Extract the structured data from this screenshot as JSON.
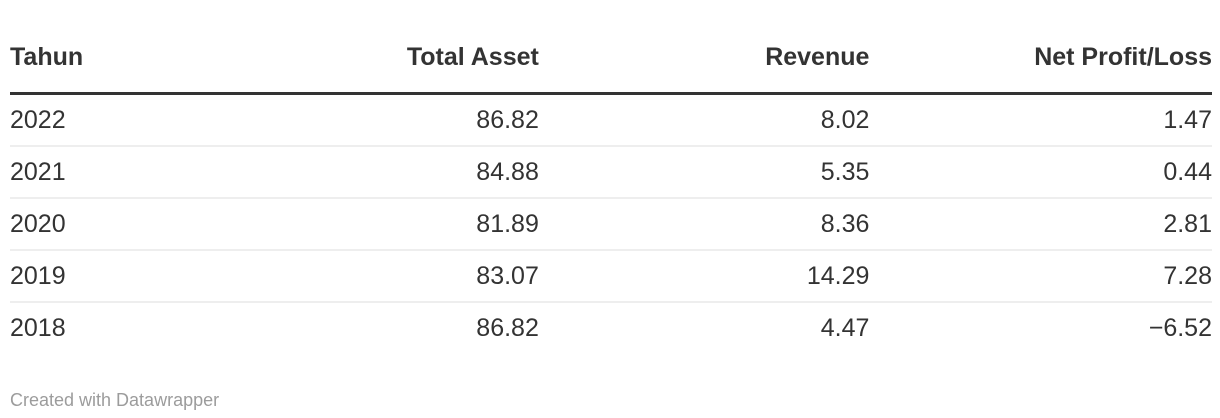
{
  "table": {
    "header": [
      "Tahun",
      "Total Asset",
      "Revenue",
      "Net Profit/Loss"
    ],
    "rows": [
      [
        "2022",
        "86.82",
        "8.02",
        "1.47"
      ],
      [
        "2021",
        "84.88",
        "5.35",
        "0.44"
      ],
      [
        "2020",
        "81.89",
        "8.36",
        "2.81"
      ],
      [
        "2019",
        "83.07",
        "14.29",
        "7.28"
      ],
      [
        "2018",
        "86.82",
        "4.47",
        "−6.52"
      ]
    ]
  },
  "footer": {
    "attribution": "Created with Datawrapper"
  },
  "colors": {
    "text": "#333333",
    "header_rule": "#333333",
    "row_rule": "#eeeeee",
    "attribution": "#9c9c9c"
  },
  "chart_data": {
    "type": "table",
    "columns": [
      "Tahun",
      "Total Asset",
      "Revenue",
      "Net Profit/Loss"
    ],
    "rows": [
      [
        "2022",
        86.82,
        8.02,
        1.47
      ],
      [
        "2021",
        84.88,
        5.35,
        0.44
      ],
      [
        "2020",
        81.89,
        8.36,
        2.81
      ],
      [
        "2019",
        83.07,
        14.29,
        7.28
      ],
      [
        "2018",
        86.82,
        4.47,
        -6.52
      ]
    ],
    "column_alignment": [
      "left",
      "right",
      "right",
      "right"
    ],
    "attribution": "Created with Datawrapper"
  }
}
